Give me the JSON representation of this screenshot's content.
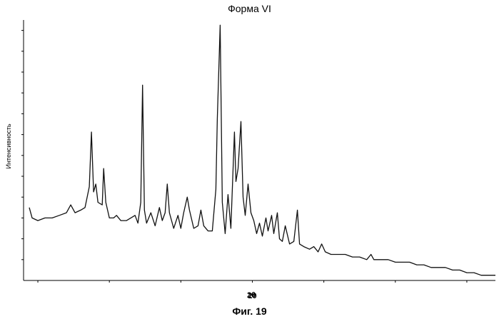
{
  "chart_data": {
    "type": "line",
    "title": "Форма VI",
    "xlabel": "2θ",
    "ylabel": "Интенсивность",
    "caption": "Фиг. 19",
    "x_tick_labels": [
      {
        "x": 20,
        "label": "20"
      }
    ],
    "xlim": [
      4,
      37
    ],
    "ylim": [
      0,
      1
    ],
    "grid": false,
    "legend": "none",
    "line_color": "#111111",
    "series": [
      {
        "values": [
          [
            4.4,
            0.28
          ],
          [
            4.6,
            0.24
          ],
          [
            5.0,
            0.23
          ],
          [
            5.5,
            0.24
          ],
          [
            6.0,
            0.24
          ],
          [
            6.5,
            0.25
          ],
          [
            7.0,
            0.26
          ],
          [
            7.3,
            0.29
          ],
          [
            7.6,
            0.26
          ],
          [
            8.0,
            0.27
          ],
          [
            8.3,
            0.28
          ],
          [
            8.6,
            0.36
          ],
          [
            8.75,
            0.57
          ],
          [
            8.9,
            0.34
          ],
          [
            9.05,
            0.37
          ],
          [
            9.2,
            0.3
          ],
          [
            9.5,
            0.29
          ],
          [
            9.6,
            0.43
          ],
          [
            9.75,
            0.3
          ],
          [
            10.0,
            0.24
          ],
          [
            10.3,
            0.24
          ],
          [
            10.5,
            0.25
          ],
          [
            10.8,
            0.23
          ],
          [
            11.2,
            0.23
          ],
          [
            11.5,
            0.24
          ],
          [
            11.8,
            0.25
          ],
          [
            12.0,
            0.22
          ],
          [
            12.2,
            0.3
          ],
          [
            12.32,
            0.75
          ],
          [
            12.45,
            0.27
          ],
          [
            12.6,
            0.22
          ],
          [
            12.9,
            0.26
          ],
          [
            13.2,
            0.21
          ],
          [
            13.5,
            0.28
          ],
          [
            13.7,
            0.23
          ],
          [
            13.9,
            0.26
          ],
          [
            14.05,
            0.37
          ],
          [
            14.2,
            0.26
          ],
          [
            14.5,
            0.2
          ],
          [
            14.8,
            0.25
          ],
          [
            15.0,
            0.2
          ],
          [
            15.2,
            0.26
          ],
          [
            15.45,
            0.32
          ],
          [
            15.6,
            0.27
          ],
          [
            15.9,
            0.2
          ],
          [
            16.2,
            0.21
          ],
          [
            16.4,
            0.27
          ],
          [
            16.6,
            0.21
          ],
          [
            16.9,
            0.19
          ],
          [
            17.2,
            0.19
          ],
          [
            17.45,
            0.35
          ],
          [
            17.55,
            0.62
          ],
          [
            17.75,
            0.98
          ],
          [
            17.9,
            0.3
          ],
          [
            18.1,
            0.18
          ],
          [
            18.3,
            0.33
          ],
          [
            18.5,
            0.2
          ],
          [
            18.75,
            0.57
          ],
          [
            18.85,
            0.38
          ],
          [
            19.0,
            0.43
          ],
          [
            19.2,
            0.61
          ],
          [
            19.35,
            0.32
          ],
          [
            19.5,
            0.25
          ],
          [
            19.7,
            0.37
          ],
          [
            19.9,
            0.26
          ],
          [
            20.1,
            0.23
          ],
          [
            20.3,
            0.18
          ],
          [
            20.5,
            0.22
          ],
          [
            20.7,
            0.17
          ],
          [
            20.95,
            0.24
          ],
          [
            21.1,
            0.19
          ],
          [
            21.35,
            0.25
          ],
          [
            21.5,
            0.18
          ],
          [
            21.75,
            0.26
          ],
          [
            21.9,
            0.16
          ],
          [
            22.1,
            0.15
          ],
          [
            22.3,
            0.21
          ],
          [
            22.6,
            0.14
          ],
          [
            22.9,
            0.15
          ],
          [
            23.15,
            0.27
          ],
          [
            23.3,
            0.14
          ],
          [
            23.6,
            0.13
          ],
          [
            24.0,
            0.12
          ],
          [
            24.3,
            0.13
          ],
          [
            24.6,
            0.11
          ],
          [
            24.85,
            0.14
          ],
          [
            25.1,
            0.11
          ],
          [
            25.5,
            0.1
          ],
          [
            26.0,
            0.1
          ],
          [
            26.5,
            0.1
          ],
          [
            27.0,
            0.09
          ],
          [
            27.5,
            0.09
          ],
          [
            28.0,
            0.08
          ],
          [
            28.3,
            0.1
          ],
          [
            28.5,
            0.08
          ],
          [
            29.0,
            0.08
          ],
          [
            29.5,
            0.08
          ],
          [
            30.0,
            0.07
          ],
          [
            30.5,
            0.07
          ],
          [
            31.0,
            0.07
          ],
          [
            31.5,
            0.06
          ],
          [
            32.0,
            0.06
          ],
          [
            32.5,
            0.05
          ],
          [
            33.0,
            0.05
          ],
          [
            33.5,
            0.05
          ],
          [
            34.0,
            0.04
          ],
          [
            34.5,
            0.04
          ],
          [
            35.0,
            0.03
          ],
          [
            35.5,
            0.03
          ],
          [
            36.0,
            0.02
          ],
          [
            36.5,
            0.02
          ],
          [
            37.0,
            0.02
          ]
        ]
      }
    ]
  }
}
